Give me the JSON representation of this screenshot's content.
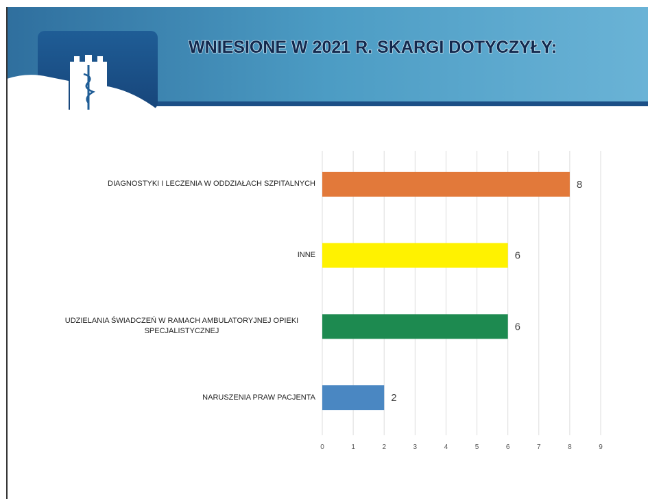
{
  "chart_data": {
    "type": "bar",
    "orientation": "horizontal",
    "title": "WNIESIONE W 2021 R. SKARGI DOTYCZYŁY:",
    "categories": [
      "DIAGNOSTYKI I LECZENIA W ODDZIAŁACH SZPITALNYCH",
      "INNE",
      "UDZIELANIA ŚWIADCZEŃ W RAMACH AMBULATORYJNEJ OPIEKI SPECJALISTYCZNEJ",
      "NARUSZENIA PRAW PACJENTA"
    ],
    "values": [
      8,
      6,
      6,
      2
    ],
    "colors": [
      "#e2793a",
      "#fff200",
      "#1d8a50",
      "#4a87c2"
    ],
    "xlim": [
      0,
      9
    ],
    "xticks": [
      0,
      1,
      2,
      3,
      4,
      5,
      6,
      7,
      8,
      9
    ],
    "grid": true
  }
}
